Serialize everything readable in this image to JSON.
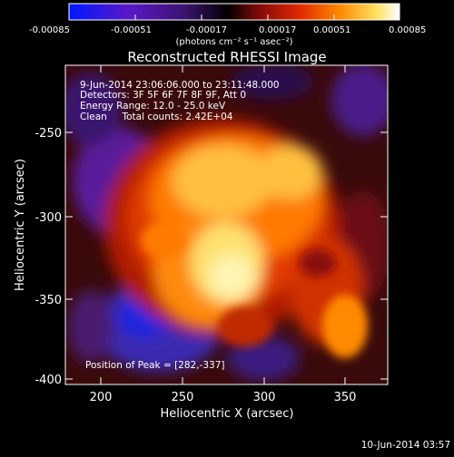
{
  "colorbar": {
    "ticks": [
      "-0.00085",
      "-0.00051",
      "-0.00017",
      "0.00017",
      "0.00051",
      "0.00085"
    ],
    "unit_label": "(photons cm⁻² s⁻¹ asec⁻²)",
    "colormap_stops": [
      "#0018ff",
      "#5a18c8",
      "#3b1470",
      "#000000",
      "#8a0a0a",
      "#e02a00",
      "#ff8a00",
      "#ffe060",
      "#ffffff"
    ]
  },
  "title": "Reconstructed RHESSI Image",
  "info_lines": [
    "9-Jun-2014 23:06:06.000 to 23:11:48.000",
    "Detectors: 3F 5F 6F 7F 8F 9F, Att 0",
    "Energy Range: 12.0 - 25.0 keV",
    "Clean     Total counts: 2.42E+04"
  ],
  "peak_label": "Position of Peak = [282,-337]",
  "xlabel": "Heliocentric X (arcsec)",
  "ylabel": "Heliocentric Y (arcsec)",
  "x_ticks": [
    "200",
    "250",
    "300",
    "350"
  ],
  "y_ticks": [
    "-250",
    "-300",
    "-350",
    "-400"
  ],
  "x_range": [
    180,
    375
  ],
  "y_range": [
    -405,
    -205
  ],
  "peak_position": [
    282,
    -337
  ],
  "timestamp": "10-Jun-2014 03:57"
}
